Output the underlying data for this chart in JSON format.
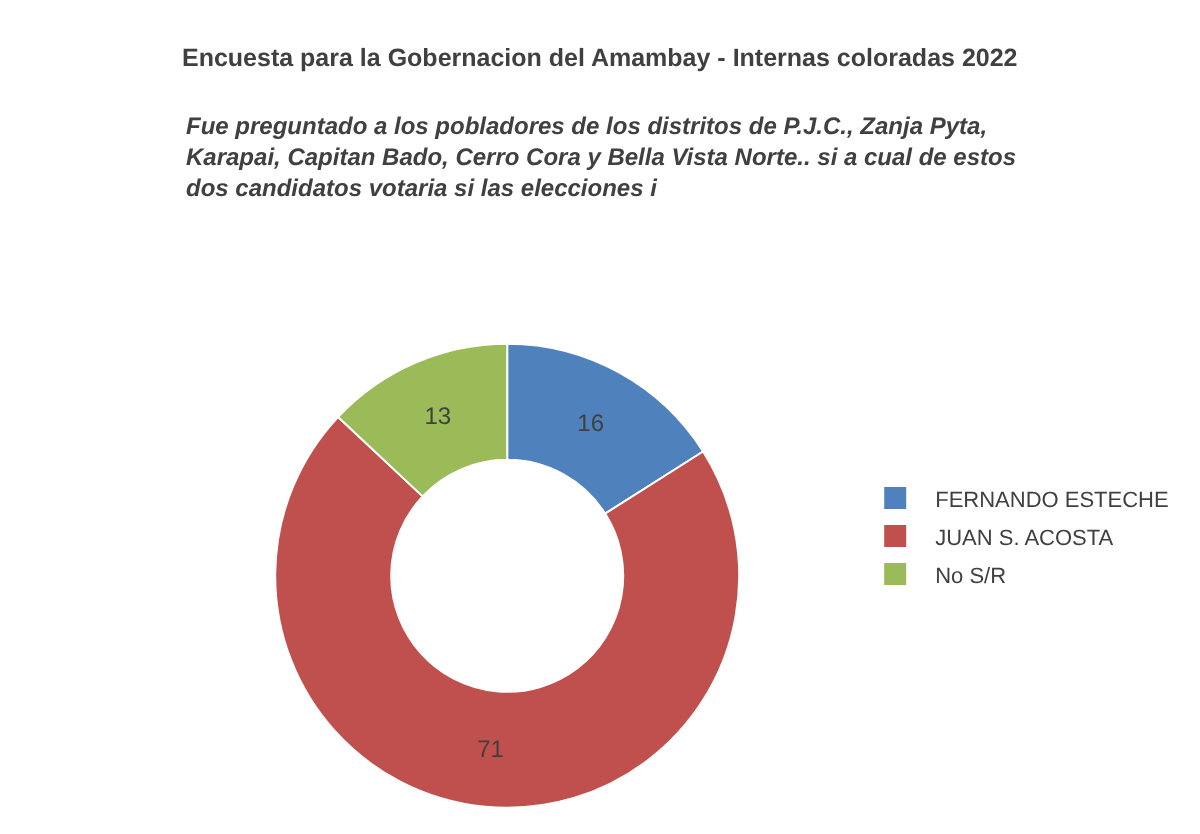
{
  "chart_data": {
    "type": "donut",
    "title": "Encuesta para la Gobernacion del Amambay - Internas coloradas 2022",
    "subtitle": "Fue preguntado a los pobladores de los distritos de P.J.C., Zanja Pyta,\nKarapai, Capitan Bado, Cerro Cora y Bella Vista Norte.. si a cual de estos\ndos candidatos votaria si las elecciones i",
    "categories": [
      "FERNANDO ESTECHE",
      "JUAN S. ACOSTA",
      "No S/R"
    ],
    "values": [
      16,
      71,
      13
    ],
    "colors": [
      "#4f81bd",
      "#c0504d",
      "#9bbb59"
    ],
    "data_labels": true,
    "legend": "right"
  }
}
